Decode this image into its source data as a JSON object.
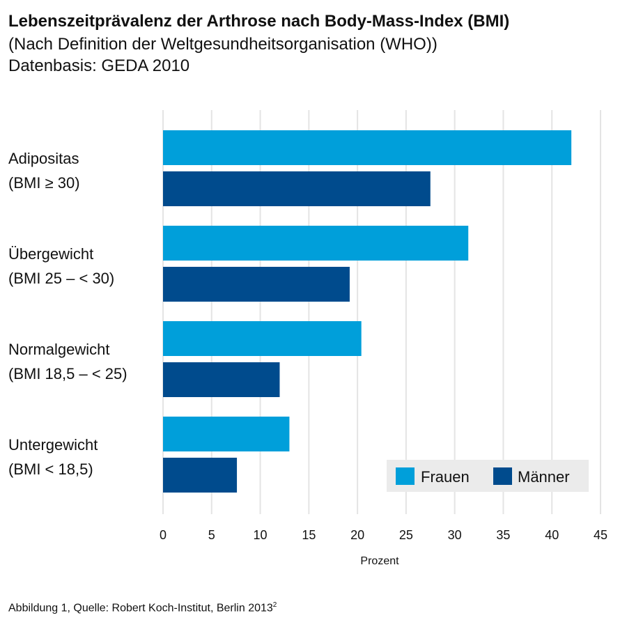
{
  "header": {
    "title": "Lebenszeitprävalenz der Arthrose nach Body-Mass-Index (BMI)",
    "subtitle_line1": "(Nach Definition der Weltgesundheitsorganisation (WHO))",
    "subtitle_line2": "Datenbasis: GEDA 2010"
  },
  "footer": {
    "text": "Abbildung 1, Quelle: Robert Koch-Institut, Berlin 2013",
    "superscript": "2"
  },
  "chart_data": {
    "type": "bar",
    "orientation": "horizontal",
    "categories": [
      [
        "Adipositas",
        "(BMI ≥ 30)"
      ],
      [
        "Übergewicht",
        "(BMI 25 – < 30)"
      ],
      [
        "Normalgewicht",
        "(BMI 18,5 – < 25)"
      ],
      [
        "Untergewicht",
        "(BMI < 18,5)"
      ]
    ],
    "series": [
      {
        "name": "Frauen",
        "color": "#009fda",
        "values": [
          42.0,
          31.4,
          20.4,
          13.0
        ]
      },
      {
        "name": "Männer",
        "color": "#004b8d",
        "values": [
          27.5,
          19.2,
          12.0,
          7.6
        ]
      }
    ],
    "xlabel": "Prozent",
    "xlim": [
      0,
      45
    ],
    "xticks": [
      "0",
      "5",
      "10",
      "15",
      "20",
      "25",
      "30",
      "35",
      "40",
      "45"
    ],
    "grid": true,
    "legend_position": "bottom-right"
  }
}
